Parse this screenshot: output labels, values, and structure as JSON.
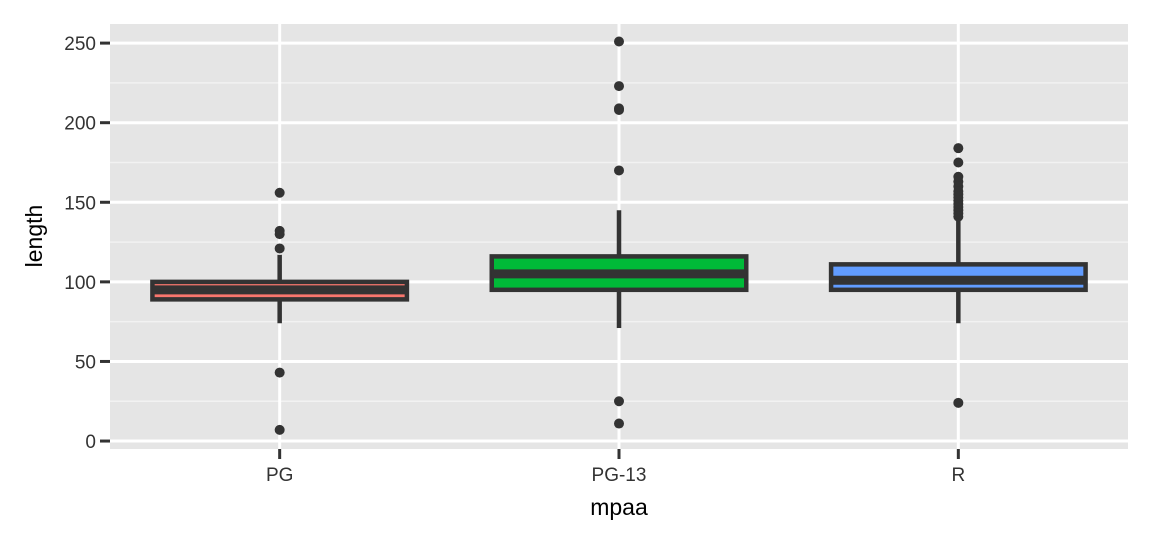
{
  "chart_data": {
    "type": "boxplot",
    "xlabel": "mpaa",
    "ylabel": "length",
    "ylim": [
      -5,
      262
    ],
    "y_ticks": [
      0,
      50,
      100,
      150,
      200,
      250
    ],
    "y_tick_labels": [
      "0",
      "50",
      "100",
      "150",
      "200",
      "250"
    ],
    "grid": true,
    "legend": "none",
    "categories": [
      "PG",
      "PG-13",
      "R"
    ],
    "boxes": [
      {
        "category": "PG",
        "fill": "#F8766D",
        "whisker_low": 74,
        "q1": 89,
        "median": 95,
        "q3": 100,
        "whisker_high": 117,
        "outliers": [
          7,
          43,
          121,
          130,
          132,
          156
        ]
      },
      {
        "category": "PG-13",
        "fill": "#00BA38",
        "whisker_low": 71,
        "q1": 95,
        "median": 105,
        "q3": 116,
        "whisker_high": 145,
        "outliers": [
          11,
          25,
          170,
          208,
          209,
          223,
          251
        ]
      },
      {
        "category": "R",
        "fill": "#619CFF",
        "whisker_low": 74,
        "q1": 95,
        "median": 101,
        "q3": 111,
        "whisker_high": 140,
        "outliers": [
          24,
          141,
          143,
          145,
          147,
          149,
          151,
          153,
          155,
          157,
          160,
          163,
          166,
          175,
          184
        ]
      }
    ]
  }
}
